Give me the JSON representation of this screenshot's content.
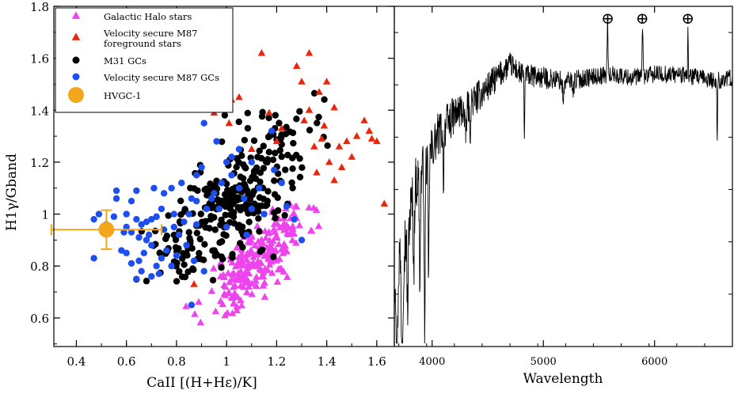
{
  "colors": {
    "halo": "#ee44ee",
    "m87_fg": "#e8260c",
    "m31": "#000000",
    "m87_gc": "#1d4ef0",
    "hvgc": "#f2a61c",
    "spectrum": "#000000"
  },
  "chart_data": [
    {
      "type": "scatter",
      "xlabel": "CaII [(H+Hε)/K]",
      "ylabel": "H1γ/Gband",
      "xlim": [
        0.31,
        1.67
      ],
      "ylim": [
        0.49,
        1.8
      ],
      "xticks": [
        "0.4",
        "0.6",
        "0.8",
        "1",
        "1.2",
        "1.4",
        "1.6"
      ],
      "yticks": [
        "0.6",
        "0.8",
        "1",
        "1.2",
        "1.4",
        "1.6",
        "1.8"
      ],
      "legend_position": "top-left",
      "legend": [
        {
          "label": "Galactic Halo stars",
          "marker": "triangle",
          "color": "#ee44ee"
        },
        {
          "label": "Velocity secure M87",
          "label2": "foreground stars",
          "marker": "triangle",
          "color": "#e8260c"
        },
        {
          "label": "M31 GCs",
          "marker": "circle",
          "color": "#000000"
        },
        {
          "label": "Velocity secure M87 GCs",
          "marker": "circle",
          "color": "#1d4ef0"
        },
        {
          "label": "HVGC-1",
          "marker": "big-circle",
          "color": "#f2a61c"
        }
      ],
      "series": [
        {
          "name": "Galactic Halo stars",
          "marker": "triangle",
          "color": "#ee44ee",
          "cluster": {
            "n": 230,
            "cx": 1.12,
            "cy": 0.82,
            "sx": 0.1,
            "sy": 0.085,
            "slope": 1.0,
            "xmin": 0.8,
            "xmax": 1.38,
            "ymin": 0.57,
            "ymax": 1.12,
            "seed": 11
          }
        },
        {
          "name": "Velocity secure M87 foreground stars",
          "marker": "triangle",
          "color": "#e8260c",
          "points": [
            [
              0.92,
              1.49
            ],
            [
              0.97,
              1.46
            ],
            [
              1.02,
              1.44
            ],
            [
              1.05,
              1.45
            ],
            [
              0.95,
              1.39
            ],
            [
              1.01,
              1.35
            ],
            [
              1.14,
              1.62
            ],
            [
              1.28,
              1.57
            ],
            [
              1.33,
              1.62
            ],
            [
              1.3,
              1.51
            ],
            [
              1.37,
              1.47
            ],
            [
              1.4,
              1.51
            ],
            [
              1.43,
              1.41
            ],
            [
              1.38,
              1.29
            ],
            [
              1.45,
              1.26
            ],
            [
              1.48,
              1.28
            ],
            [
              1.52,
              1.3
            ],
            [
              1.55,
              1.36
            ],
            [
              1.57,
              1.32
            ],
            [
              1.58,
              1.29
            ],
            [
              1.6,
              1.28
            ],
            [
              1.5,
              1.22
            ],
            [
              1.46,
              1.18
            ],
            [
              1.41,
              1.2
            ],
            [
              1.35,
              1.26
            ],
            [
              1.31,
              1.36
            ],
            [
              1.33,
              1.4
            ],
            [
              1.39,
              1.34
            ],
            [
              1.63,
              1.04
            ],
            [
              0.87,
              0.73
            ],
            [
              1.22,
              1.33
            ],
            [
              1.17,
              1.39
            ],
            [
              1.1,
              1.25
            ],
            [
              1.2,
              1.28
            ],
            [
              1.36,
              1.16
            ],
            [
              1.43,
              1.13
            ]
          ]
        },
        {
          "name": "M31 GCs",
          "marker": "circle",
          "color": "#000000",
          "cluster": {
            "n": 300,
            "cx": 1.0,
            "cy": 1.02,
            "sx": 0.16,
            "sy": 0.14,
            "slope": 0.9,
            "xmin": 0.62,
            "xmax": 1.42,
            "ymin": 0.74,
            "ymax": 1.5,
            "seed": 23
          }
        },
        {
          "name": "Velocity secure M87 GCs",
          "marker": "circle",
          "color": "#1d4ef0",
          "points": [
            [
              0.47,
              0.98
            ],
            [
              0.49,
              1.0
            ],
            [
              0.52,
              0.96
            ],
            [
              0.55,
              0.99
            ],
            [
              0.6,
              1.0
            ],
            [
              0.62,
              1.05
            ],
            [
              0.64,
              1.09
            ],
            [
              0.56,
              1.06
            ],
            [
              0.6,
              0.95
            ],
            [
              0.62,
              0.93
            ],
            [
              0.65,
              0.91
            ],
            [
              0.66,
              0.96
            ],
            [
              0.68,
              0.97
            ],
            [
              0.7,
              0.98
            ],
            [
              0.72,
              0.99
            ],
            [
              0.74,
              1.02
            ],
            [
              0.75,
              1.08
            ],
            [
              0.78,
              1.1
            ],
            [
              0.79,
              0.95
            ],
            [
              0.81,
              0.92
            ],
            [
              0.83,
              0.97
            ],
            [
              0.85,
              1.0
            ],
            [
              0.88,
              1.05
            ],
            [
              0.88,
              1.15
            ],
            [
              0.9,
              1.18
            ],
            [
              0.92,
              1.02
            ],
            [
              0.95,
              1.08
            ],
            [
              0.98,
              1.12
            ],
            [
              1.0,
              1.2
            ],
            [
              1.02,
              1.15
            ],
            [
              1.05,
              1.1
            ],
            [
              1.07,
              1.06
            ],
            [
              1.1,
              1.2
            ],
            [
              1.13,
              1.1
            ],
            [
              1.05,
              1.25
            ],
            [
              0.91,
              1.35
            ],
            [
              0.65,
              0.82
            ],
            [
              0.67,
              0.85
            ],
            [
              0.7,
              0.88
            ],
            [
              0.72,
              0.8
            ],
            [
              0.74,
              0.83
            ],
            [
              0.76,
              0.86
            ],
            [
              0.78,
              0.8
            ],
            [
              0.8,
              0.84
            ],
            [
              0.62,
              0.81
            ],
            [
              0.6,
              0.85
            ],
            [
              0.64,
              0.75
            ],
            [
              0.66,
              0.78
            ],
            [
              0.7,
              0.76
            ],
            [
              0.73,
              0.77
            ],
            [
              0.47,
              0.83
            ],
            [
              0.58,
              0.86
            ],
            [
              0.84,
              0.88
            ],
            [
              0.87,
              0.82
            ],
            [
              0.91,
              0.78
            ],
            [
              1.19,
              1.17
            ],
            [
              1.22,
              1.12
            ],
            [
              1.24,
              1.03
            ],
            [
              1.27,
              0.98
            ],
            [
              1.3,
              0.9
            ],
            [
              1.18,
              1.32
            ],
            [
              1.15,
              1.0
            ],
            [
              0.82,
              1.12
            ],
            [
              0.86,
              1.06
            ],
            [
              0.97,
              1.02
            ],
            [
              0.94,
              1.06
            ],
            [
              0.79,
              1.0
            ],
            [
              0.75,
              0.94
            ],
            [
              0.69,
              0.92
            ],
            [
              0.59,
              0.93
            ],
            [
              0.64,
              0.98
            ],
            [
              0.86,
              0.65
            ],
            [
              1.0,
              0.95
            ],
            [
              0.96,
              1.28
            ],
            [
              1.02,
              1.22
            ],
            [
              0.71,
              1.1
            ],
            [
              0.56,
              1.09
            ],
            [
              0.68,
              0.9
            ],
            [
              0.88,
              0.96
            ],
            [
              1.08,
              0.92
            ],
            [
              1.1,
              1.02
            ]
          ]
        },
        {
          "name": "HVGC-1",
          "marker": "big-circle",
          "color": "#f2a61c",
          "points": [
            [
              0.52,
              0.94
            ]
          ],
          "xerr": [
            0.22,
            0.22
          ],
          "yerr": [
            0.075,
            0.075
          ]
        }
      ]
    },
    {
      "type": "line",
      "xlabel": "Wavelength",
      "xlim": [
        3660,
        6700
      ],
      "ylim": [
        0.0,
        1.0
      ],
      "xticks": [
        "4000",
        "5000",
        "6000"
      ],
      "yticks": [],
      "annotations": [
        {
          "label": "⊕",
          "x": 5580
        },
        {
          "label": "⊕",
          "x": 5890
        },
        {
          "label": "⊕",
          "x": 6300
        }
      ],
      "series": [
        {
          "name": "spectrum",
          "color": "#000000",
          "x_start": 3660,
          "x_end": 6700,
          "step": 3,
          "continuum": [
            [
              3660,
              0.22
            ],
            [
              3750,
              0.3
            ],
            [
              3850,
              0.48
            ],
            [
              3950,
              0.54
            ],
            [
              4050,
              0.62
            ],
            [
              4200,
              0.68
            ],
            [
              4400,
              0.73
            ],
            [
              4550,
              0.78
            ],
            [
              4700,
              0.83
            ],
            [
              4800,
              0.8
            ],
            [
              5000,
              0.79
            ],
            [
              5200,
              0.78
            ],
            [
              5400,
              0.79
            ],
            [
              5600,
              0.8
            ],
            [
              5800,
              0.79
            ],
            [
              6000,
              0.8
            ],
            [
              6200,
              0.8
            ],
            [
              6400,
              0.79
            ],
            [
              6550,
              0.78
            ],
            [
              6700,
              0.79
            ]
          ],
          "noise": [
            [
              3660,
              0.07
            ],
            [
              3850,
              0.05
            ],
            [
              4200,
              0.035
            ],
            [
              4700,
              0.022
            ],
            [
              5500,
              0.016
            ],
            [
              6700,
              0.016
            ]
          ],
          "features": [
            {
              "x": 3685,
              "w": 8,
              "d": -0.33
            },
            {
              "x": 3730,
              "w": 10,
              "d": -0.28
            },
            {
              "x": 3780,
              "w": 8,
              "d": -0.25
            },
            {
              "x": 3835,
              "w": 7,
              "d": -0.22
            },
            {
              "x": 3890,
              "w": 7,
              "d": -0.3
            },
            {
              "x": 3933,
              "w": 6,
              "d": -0.52
            },
            {
              "x": 3968,
              "w": 6,
              "d": -0.38
            },
            {
              "x": 4102,
              "w": 6,
              "d": -0.14
            },
            {
              "x": 4300,
              "w": 12,
              "d": -0.08
            },
            {
              "x": 4340,
              "w": 6,
              "d": -0.11
            },
            {
              "x": 4830,
              "w": 4,
              "d": -0.2
            },
            {
              "x": 5180,
              "w": 10,
              "d": -0.05
            },
            {
              "x": 5270,
              "w": 8,
              "d": -0.03
            },
            {
              "x": 5577,
              "w": 5,
              "d": 0.16
            },
            {
              "x": 5892,
              "w": 5,
              "d": 0.16
            },
            {
              "x": 6300,
              "w": 4,
              "d": 0.14
            },
            {
              "x": 6563,
              "w": 5,
              "d": -0.16
            }
          ]
        }
      ]
    }
  ]
}
